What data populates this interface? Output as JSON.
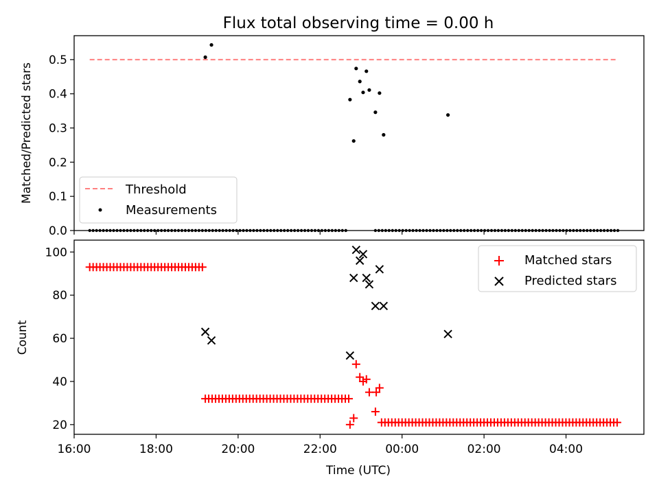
{
  "title": "Flux total observing time = 0.00 h",
  "chart_data": [
    {
      "type": "scatter",
      "ylabel": "Matched/Predicted stars",
      "xlim": [
        16.0,
        29.9
      ],
      "ylim": [
        0,
        0.57
      ],
      "yticks": [
        0.0,
        0.1,
        0.2,
        0.3,
        0.4,
        0.5
      ],
      "ytick_labels": [
        "0.0",
        "0.1",
        "0.2",
        "0.3",
        "0.4",
        "0.5"
      ],
      "legend_position": "lower-left",
      "threshold": {
        "name": "Threshold",
        "value": 0.5,
        "x_range": [
          16.38,
          29.27
        ],
        "color": "#ff7f7f"
      },
      "measurements": {
        "name": "Measurements",
        "color": "#000000",
        "points": [
          [
            19.2,
            0.507
          ],
          [
            19.35,
            0.543
          ],
          [
            22.73,
            0.383
          ],
          [
            22.82,
            0.262
          ],
          [
            22.88,
            0.474
          ],
          [
            22.97,
            0.436
          ],
          [
            23.05,
            0.404
          ],
          [
            23.13,
            0.466
          ],
          [
            23.2,
            0.411
          ],
          [
            23.35,
            0.346
          ],
          [
            23.45,
            0.402
          ],
          [
            23.55,
            0.28
          ],
          [
            25.12,
            0.338
          ]
        ],
        "zero_x_ranges": [
          [
            16.38,
            22.7
          ],
          [
            23.35,
            29.27
          ]
        ]
      }
    },
    {
      "type": "scatter",
      "xlabel": "Time (UTC)",
      "ylabel": "Count",
      "xlim": [
        16.0,
        29.9
      ],
      "ylim": [
        15.5,
        105.5
      ],
      "yticks": [
        20,
        40,
        60,
        80,
        100
      ],
      "ytick_labels": [
        "20",
        "40",
        "60",
        "80",
        "100"
      ],
      "xticks": [
        16,
        18,
        20,
        22,
        24,
        26,
        28
      ],
      "xtick_labels": [
        "16:00",
        "18:00",
        "20:00",
        "22:00",
        "00:00",
        "02:00",
        "04:00"
      ],
      "legend_position": "upper-right",
      "series": [
        {
          "name": "Matched stars",
          "marker": "plus",
          "color": "#ff0000",
          "runs": [
            [
              16.38,
              19.15,
              93
            ],
            [
              19.2,
              22.7,
              32
            ],
            [
              23.5,
              29.27,
              21
            ]
          ],
          "points": [
            [
              22.73,
              20
            ],
            [
              22.82,
              23
            ],
            [
              22.88,
              48
            ],
            [
              22.97,
              42
            ],
            [
              23.05,
              40
            ],
            [
              23.13,
              41
            ],
            [
              23.2,
              35
            ],
            [
              23.35,
              26
            ],
            [
              23.37,
              35
            ],
            [
              23.45,
              37
            ]
          ]
        },
        {
          "name": "Predicted stars",
          "marker": "x",
          "color": "#000000",
          "points": [
            [
              19.2,
              63
            ],
            [
              19.35,
              59
            ],
            [
              22.73,
              52
            ],
            [
              22.82,
              88
            ],
            [
              22.88,
              101
            ],
            [
              22.97,
              96
            ],
            [
              23.05,
              99
            ],
            [
              23.13,
              88
            ],
            [
              23.2,
              85
            ],
            [
              23.35,
              75
            ],
            [
              23.45,
              92
            ],
            [
              23.55,
              75
            ],
            [
              25.12,
              62
            ]
          ]
        }
      ]
    }
  ]
}
